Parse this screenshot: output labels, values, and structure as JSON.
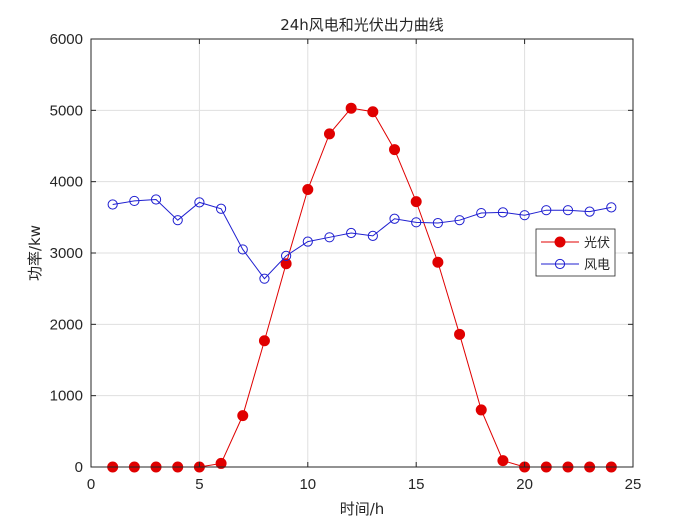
{
  "chart_data": {
    "type": "line",
    "title": "24h风电和光伏出力曲线",
    "xlabel": "时间/h",
    "ylabel": "功率/kw",
    "xlim": [
      0,
      25
    ],
    "ylim": [
      0,
      6000
    ],
    "xticks": [
      0,
      5,
      10,
      15,
      20,
      25
    ],
    "yticks": [
      0,
      1000,
      2000,
      3000,
      4000,
      5000,
      6000
    ],
    "grid": true,
    "legend_position": "right",
    "x": [
      1,
      2,
      3,
      4,
      5,
      6,
      7,
      8,
      9,
      10,
      11,
      12,
      13,
      14,
      15,
      16,
      17,
      18,
      19,
      20,
      21,
      22,
      23,
      24
    ],
    "series": [
      {
        "name": "光伏",
        "color": "#e00000",
        "marker": "filled-circle",
        "values": [
          0,
          0,
          0,
          0,
          0,
          50,
          720,
          1770,
          2850,
          3890,
          4670,
          5030,
          4980,
          4450,
          3720,
          2870,
          1860,
          800,
          90,
          0,
          0,
          0,
          0,
          0
        ]
      },
      {
        "name": "风电",
        "color": "#1f1fd0",
        "marker": "open-circle",
        "values": [
          3680,
          3730,
          3750,
          3460,
          3710,
          3620,
          3050,
          2640,
          2960,
          3160,
          3220,
          3280,
          3240,
          3480,
          3430,
          3420,
          3460,
          3560,
          3570,
          3530,
          3600,
          3600,
          3580,
          3640
        ]
      }
    ]
  }
}
